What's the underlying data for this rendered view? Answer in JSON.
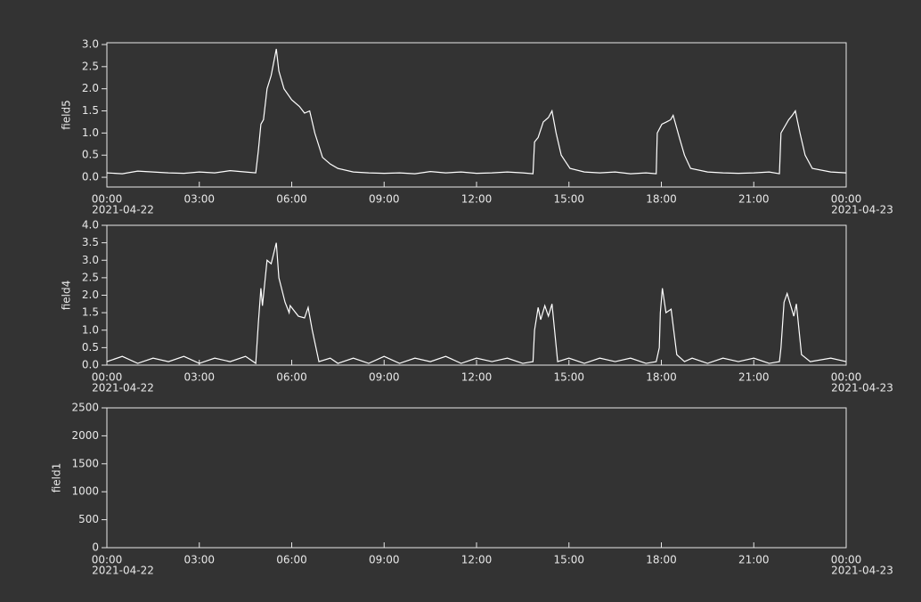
{
  "chart_data": [
    {
      "type": "line",
      "y_label": "field5",
      "xlim": [
        "2021-04-22 00:00",
        "2021-04-23 00:00"
      ],
      "xticks": [
        {
          "value": "2021-04-22 00:00",
          "label": "00:00"
        },
        {
          "value": "2021-04-22 03:00",
          "label": "03:00"
        },
        {
          "value": "2021-04-22 06:00",
          "label": "06:00"
        },
        {
          "value": "2021-04-22 09:00",
          "label": "09:00"
        },
        {
          "value": "2021-04-22 12:00",
          "label": "12:00"
        },
        {
          "value": "2021-04-22 15:00",
          "label": "15:00"
        },
        {
          "value": "2021-04-22 18:00",
          "label": "18:00"
        },
        {
          "value": "2021-04-22 21:00",
          "label": "21:00"
        },
        {
          "value": "2021-04-23 00:00",
          "label": "00:00"
        }
      ],
      "x_date_labels": [
        {
          "value": "2021-04-22 00:00",
          "label": "2021-04-22"
        },
        {
          "value": "2021-04-23 00:00",
          "label": "2021-04-23"
        }
      ],
      "ylim": [
        -0.22,
        3.04
      ],
      "yticks": [
        {
          "value": 0,
          "label": "0.0"
        },
        {
          "value": 0.5,
          "label": "0.5"
        },
        {
          "value": 1,
          "label": "1.0"
        },
        {
          "value": 1.5,
          "label": "1.5"
        },
        {
          "value": 2,
          "label": "2.0"
        },
        {
          "value": 2.5,
          "label": "2.5"
        },
        {
          "value": 3,
          "label": "3.0"
        }
      ],
      "x": [
        "2021-04-22 00:00",
        "2021-04-22 00:30",
        "2021-04-22 01:00",
        "2021-04-22 01:30",
        "2021-04-22 02:00",
        "2021-04-22 02:30",
        "2021-04-22 03:00",
        "2021-04-22 03:30",
        "2021-04-22 04:00",
        "2021-04-22 04:30",
        "2021-04-22 04:50",
        "2021-04-22 04:55",
        "2021-04-22 05:00",
        "2021-04-22 05:05",
        "2021-04-22 05:12",
        "2021-04-22 05:20",
        "2021-04-22 05:30",
        "2021-04-22 05:35",
        "2021-04-22 05:45",
        "2021-04-22 06:00",
        "2021-04-22 06:15",
        "2021-04-22 06:25",
        "2021-04-22 06:35",
        "2021-04-22 06:45",
        "2021-04-22 07:00",
        "2021-04-22 07:15",
        "2021-04-22 07:30",
        "2021-04-22 08:00",
        "2021-04-22 08:30",
        "2021-04-22 09:00",
        "2021-04-22 09:30",
        "2021-04-22 10:00",
        "2021-04-22 10:30",
        "2021-04-22 11:00",
        "2021-04-22 11:30",
        "2021-04-22 12:00",
        "2021-04-22 12:30",
        "2021-04-22 13:00",
        "2021-04-22 13:30",
        "2021-04-22 13:50",
        "2021-04-22 13:53",
        "2021-04-22 14:00",
        "2021-04-22 14:10",
        "2021-04-22 14:20",
        "2021-04-22 14:27",
        "2021-04-22 14:35",
        "2021-04-22 14:45",
        "2021-04-22 15:02",
        "2021-04-22 15:30",
        "2021-04-22 16:00",
        "2021-04-22 16:30",
        "2021-04-22 17:00",
        "2021-04-22 17:30",
        "2021-04-22 17:50",
        "2021-04-22 17:52",
        "2021-04-22 18:01",
        "2021-04-22 18:10",
        "2021-04-22 18:18",
        "2021-04-22 18:23",
        "2021-04-22 18:35",
        "2021-04-22 18:45",
        "2021-04-22 18:57",
        "2021-04-22 19:30",
        "2021-04-22 20:00",
        "2021-04-22 20:30",
        "2021-04-22 21:00",
        "2021-04-22 21:30",
        "2021-04-22 21:50",
        "2021-04-22 21:53",
        "2021-04-22 22:08",
        "2021-04-22 22:15",
        "2021-04-22 22:21",
        "2021-04-22 22:30",
        "2021-04-22 22:40",
        "2021-04-22 22:54",
        "2021-04-22 23:30",
        "2021-04-23 00:00"
      ],
      "series": [
        {
          "color": "#ffffff",
          "values": [
            0.1,
            0.08,
            0.14,
            0.12,
            0.1,
            0.09,
            0.12,
            0.1,
            0.15,
            0.12,
            0.1,
            0.6,
            1.2,
            1.3,
            2.0,
            2.3,
            2.9,
            2.4,
            2.0,
            1.75,
            1.6,
            1.45,
            1.5,
            1.0,
            0.45,
            0.3,
            0.2,
            0.12,
            0.1,
            0.09,
            0.1,
            0.08,
            0.13,
            0.1,
            0.12,
            0.09,
            0.1,
            0.12,
            0.1,
            0.08,
            0.8,
            0.9,
            1.25,
            1.35,
            1.5,
            1.0,
            0.5,
            0.2,
            0.12,
            0.1,
            0.12,
            0.08,
            0.1,
            0.08,
            1.0,
            1.2,
            1.25,
            1.3,
            1.4,
            0.9,
            0.5,
            0.2,
            0.12,
            0.1,
            0.09,
            0.1,
            0.12,
            0.08,
            1.0,
            1.3,
            1.4,
            1.5,
            1.0,
            0.5,
            0.2,
            0.12,
            0.1
          ]
        }
      ]
    },
    {
      "type": "line",
      "y_label": "field4",
      "xlim": [
        "2021-04-22 00:00",
        "2021-04-23 00:00"
      ],
      "xticks": [
        {
          "value": "2021-04-22 00:00",
          "label": "00:00"
        },
        {
          "value": "2021-04-22 03:00",
          "label": "03:00"
        },
        {
          "value": "2021-04-22 06:00",
          "label": "06:00"
        },
        {
          "value": "2021-04-22 09:00",
          "label": "09:00"
        },
        {
          "value": "2021-04-22 12:00",
          "label": "12:00"
        },
        {
          "value": "2021-04-22 15:00",
          "label": "15:00"
        },
        {
          "value": "2021-04-22 18:00",
          "label": "18:00"
        },
        {
          "value": "2021-04-22 21:00",
          "label": "21:00"
        },
        {
          "value": "2021-04-23 00:00",
          "label": "00:00"
        }
      ],
      "x_date_labels": [
        {
          "value": "2021-04-22 00:00",
          "label": "2021-04-22"
        },
        {
          "value": "2021-04-23 00:00",
          "label": "2021-04-23"
        }
      ],
      "ylim": [
        0,
        4
      ],
      "yticks": [
        {
          "value": 0,
          "label": "0.0"
        },
        {
          "value": 0.5,
          "label": "0.5"
        },
        {
          "value": 1,
          "label": "1.0"
        },
        {
          "value": 1.5,
          "label": "1.5"
        },
        {
          "value": 2,
          "label": "2.0"
        },
        {
          "value": 2.5,
          "label": "2.5"
        },
        {
          "value": 3,
          "label": "3.0"
        },
        {
          "value": 3.5,
          "label": "3.5"
        },
        {
          "value": 4,
          "label": "4.0"
        }
      ],
      "x": [
        "2021-04-22 00:00",
        "2021-04-22 00:30",
        "2021-04-22 01:00",
        "2021-04-22 01:30",
        "2021-04-22 02:00",
        "2021-04-22 02:30",
        "2021-04-22 03:00",
        "2021-04-22 03:30",
        "2021-04-22 04:00",
        "2021-04-22 04:30",
        "2021-04-22 04:50",
        "2021-04-22 04:55",
        "2021-04-22 05:00",
        "2021-04-22 05:03",
        "2021-04-22 05:12",
        "2021-04-22 05:20",
        "2021-04-22 05:30",
        "2021-04-22 05:35",
        "2021-04-22 05:47",
        "2021-04-22 05:55",
        "2021-04-22 05:57",
        "2021-04-22 06:13",
        "2021-04-22 06:25",
        "2021-04-22 06:32",
        "2021-04-22 06:40",
        "2021-04-22 06:53",
        "2021-04-22 07:15",
        "2021-04-22 07:30",
        "2021-04-22 08:00",
        "2021-04-22 08:30",
        "2021-04-22 09:00",
        "2021-04-22 09:30",
        "2021-04-22 10:00",
        "2021-04-22 10:30",
        "2021-04-22 11:00",
        "2021-04-22 11:30",
        "2021-04-22 12:00",
        "2021-04-22 12:30",
        "2021-04-22 13:00",
        "2021-04-22 13:30",
        "2021-04-22 13:50",
        "2021-04-22 13:53",
        "2021-04-22 14:00",
        "2021-04-22 14:05",
        "2021-04-22 14:13",
        "2021-04-22 14:20",
        "2021-04-22 14:27",
        "2021-04-22 14:38",
        "2021-04-22 15:00",
        "2021-04-22 15:30",
        "2021-04-22 16:00",
        "2021-04-22 16:30",
        "2021-04-22 17:00",
        "2021-04-22 17:30",
        "2021-04-22 17:50",
        "2021-04-22 17:56",
        "2021-04-22 17:58",
        "2021-04-22 18:02",
        "2021-04-22 18:09",
        "2021-04-22 18:19",
        "2021-04-22 18:30",
        "2021-04-22 18:45",
        "2021-04-22 19:00",
        "2021-04-22 19:30",
        "2021-04-22 20:00",
        "2021-04-22 20:30",
        "2021-04-22 21:00",
        "2021-04-22 21:30",
        "2021-04-22 21:50",
        "2021-04-22 21:53",
        "2021-04-22 21:59",
        "2021-04-22 22:05",
        "2021-04-22 22:18",
        "2021-04-22 22:23",
        "2021-04-22 22:33",
        "2021-04-22 22:50",
        "2021-04-22 23:30",
        "2021-04-23 00:00"
      ],
      "series": [
        {
          "color": "#ffffff",
          "values": [
            0.1,
            0.25,
            0.05,
            0.2,
            0.1,
            0.25,
            0.05,
            0.2,
            0.1,
            0.25,
            0.05,
            1.2,
            2.2,
            1.7,
            3.0,
            2.9,
            3.5,
            2.5,
            1.8,
            1.5,
            1.7,
            1.4,
            1.35,
            1.65,
            1.0,
            0.1,
            0.2,
            0.05,
            0.2,
            0.05,
            0.25,
            0.05,
            0.2,
            0.1,
            0.25,
            0.05,
            0.2,
            0.1,
            0.2,
            0.05,
            0.1,
            1.0,
            1.65,
            1.3,
            1.7,
            1.4,
            1.75,
            0.1,
            0.2,
            0.05,
            0.2,
            0.1,
            0.2,
            0.05,
            0.1,
            0.5,
            1.5,
            2.2,
            1.5,
            1.6,
            0.3,
            0.1,
            0.2,
            0.05,
            0.2,
            0.1,
            0.2,
            0.05,
            0.1,
            0.5,
            1.8,
            2.05,
            1.4,
            1.75,
            0.3,
            0.1,
            0.2,
            0.1
          ]
        }
      ]
    },
    {
      "type": "line",
      "y_label": "field1",
      "xlim": [
        "2021-04-22 00:00",
        "2021-04-23 00:00"
      ],
      "xticks": [
        {
          "value": "2021-04-22 00:00",
          "label": "00:00"
        },
        {
          "value": "2021-04-22 03:00",
          "label": "03:00"
        },
        {
          "value": "2021-04-22 06:00",
          "label": "06:00"
        },
        {
          "value": "2021-04-22 09:00",
          "label": "09:00"
        },
        {
          "value": "2021-04-22 12:00",
          "label": "12:00"
        },
        {
          "value": "2021-04-22 15:00",
          "label": "15:00"
        },
        {
          "value": "2021-04-22 18:00",
          "label": "18:00"
        },
        {
          "value": "2021-04-22 21:00",
          "label": "21:00"
        },
        {
          "value": "2021-04-23 00:00",
          "label": "00:00"
        }
      ],
      "x_date_labels": [
        {
          "value": "2021-04-22 00:00",
          "label": "2021-04-22"
        },
        {
          "value": "2021-04-23 00:00",
          "label": "2021-04-23"
        }
      ],
      "ylim": [
        0,
        2500
      ],
      "yticks": [
        0,
        500,
        1000,
        1500,
        2000,
        2500
      ],
      "x": [],
      "series": [
        {
          "color": "#ffffff",
          "values": []
        }
      ]
    }
  ]
}
